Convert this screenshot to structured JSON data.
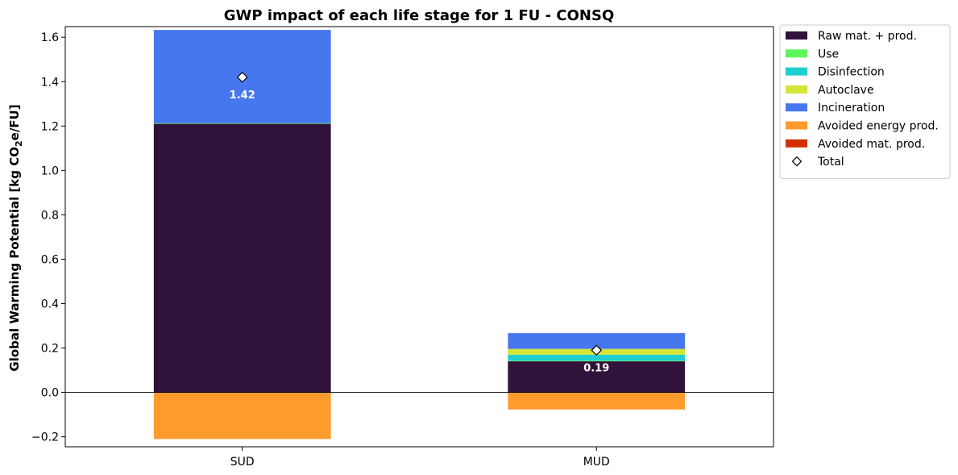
{
  "chart_data": {
    "type": "bar",
    "stacked": true,
    "title": "GWP impact of each life stage for 1 FU - CONSQ",
    "ylabel_prefix": "Global Warming Potential [kg CO",
    "ylabel_sub": "2",
    "ylabel_suffix": "e/FU]",
    "xlabel": "",
    "ylim": [
      -0.245,
      1.648
    ],
    "yticks": [
      -0.2,
      0.0,
      0.2,
      0.4,
      0.6,
      0.8,
      1.0,
      1.2,
      1.4,
      1.6
    ],
    "ytick_labels": [
      "−0.2",
      "0.0",
      "0.2",
      "0.4",
      "0.6",
      "0.8",
      "1.0",
      "1.2",
      "1.4",
      "1.6"
    ],
    "categories": [
      "SUD",
      "MUD"
    ],
    "series": [
      {
        "name": "Raw mat. + prod.",
        "color": "#30123b",
        "values": [
          1.21,
          0.14
        ]
      },
      {
        "name": "Use",
        "color": "#5cf65c",
        "values": [
          0.003,
          0.003
        ]
      },
      {
        "name": "Disinfection",
        "color": "#1fcfcf",
        "values": [
          0.0,
          0.027
        ]
      },
      {
        "name": "Autoclave",
        "color": "#d3e535",
        "values": [
          0.0,
          0.026
        ]
      },
      {
        "name": "Incineration",
        "color": "#4677ef",
        "values": [
          0.42,
          0.071
        ]
      },
      {
        "name": "Avoided energy prod.",
        "color": "#fe9b2d",
        "values": [
          -0.21,
          -0.077
        ]
      },
      {
        "name": "Avoided mat. prod.",
        "color": "#d23105",
        "values": [
          0.0,
          0.0
        ]
      }
    ],
    "totals": {
      "name": "Total",
      "values": [
        1.42,
        0.19
      ],
      "labels": [
        "1.42",
        "0.19"
      ]
    },
    "grid": false,
    "legend_position": "outside-right-top"
  }
}
